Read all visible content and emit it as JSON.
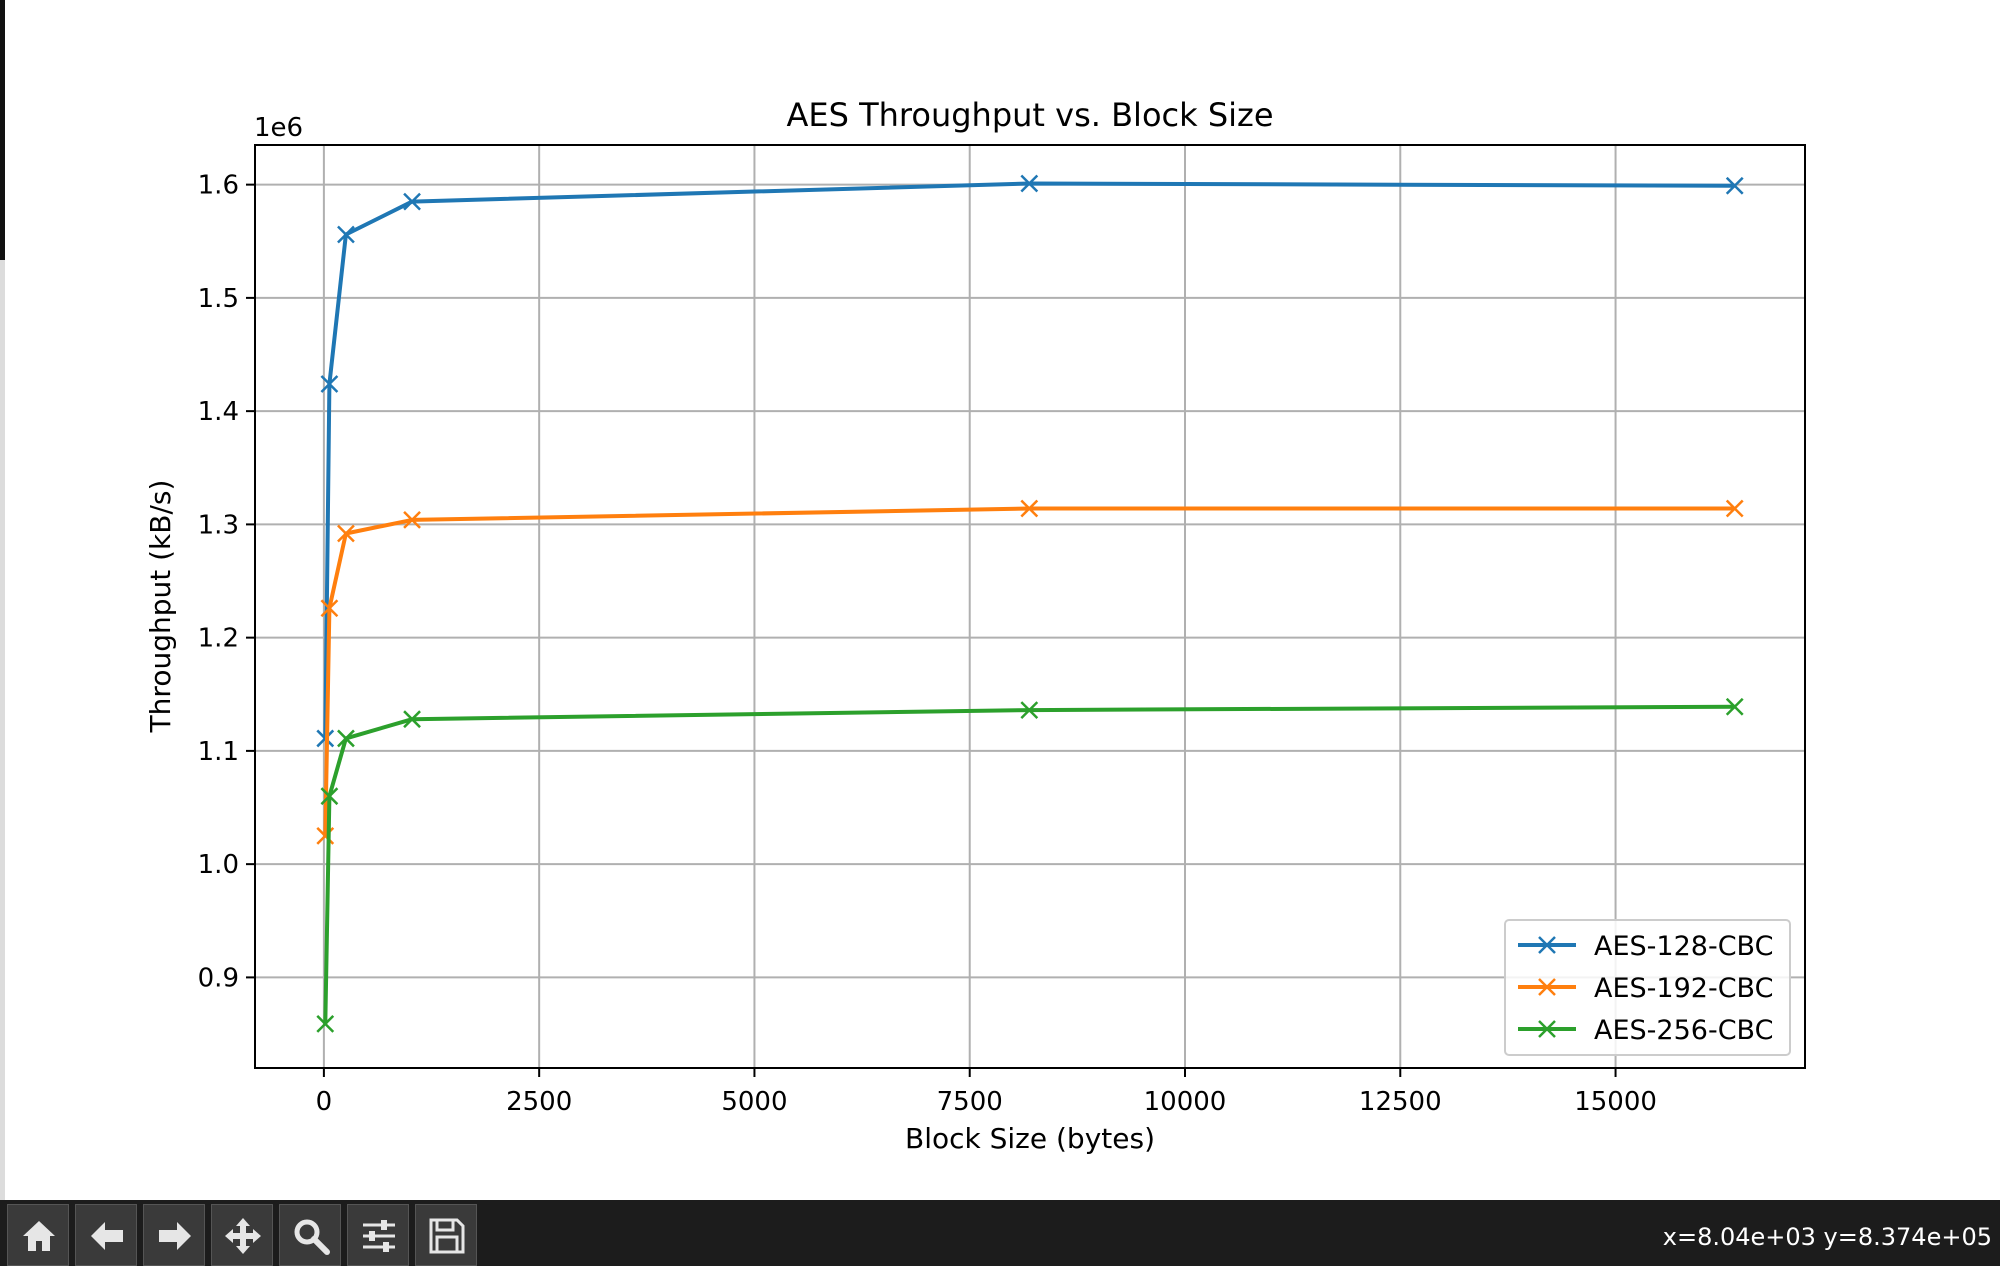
{
  "window": {
    "coord_readout": "x=8.04e+03 y=8.374e+05"
  },
  "toolbar": {
    "buttons": [
      {
        "name": "home-button",
        "icon": "home-icon"
      },
      {
        "name": "back-button",
        "icon": "arrow-left-icon"
      },
      {
        "name": "forward-button",
        "icon": "arrow-right-icon"
      },
      {
        "name": "pan-button",
        "icon": "move-icon"
      },
      {
        "name": "zoom-button",
        "icon": "zoom-icon"
      },
      {
        "name": "configure-subplots-button",
        "icon": "sliders-icon"
      },
      {
        "name": "save-button",
        "icon": "save-icon"
      }
    ]
  },
  "chart_data": {
    "type": "line",
    "title": "AES Throughput vs. Block Size",
    "xlabel": "Block Size (bytes)",
    "ylabel": "Throughput (kB/s)",
    "y_offset_label": "1e6",
    "xlim": [
      -800,
      17200
    ],
    "ylim": [
      820000,
      1635000
    ],
    "x_ticks": [
      0,
      2500,
      5000,
      7500,
      10000,
      12500,
      15000
    ],
    "x_tick_labels": [
      "0",
      "2500",
      "5000",
      "7500",
      "10000",
      "12500",
      "15000"
    ],
    "y_ticks": [
      900000,
      1000000,
      1100000,
      1200000,
      1300000,
      1400000,
      1500000,
      1600000
    ],
    "y_tick_labels": [
      "0.9",
      "1.0",
      "1.1",
      "1.2",
      "1.3",
      "1.4",
      "1.5",
      "1.6"
    ],
    "grid": true,
    "legend_position": "lower-right",
    "marker": "x",
    "x": [
      16,
      64,
      256,
      1024,
      8192,
      16384
    ],
    "series": [
      {
        "name": "AES-128-CBC",
        "color": "#1f77b4",
        "values": [
          1111000,
          1424000,
          1556000,
          1585000,
          1601000,
          1599000
        ]
      },
      {
        "name": "AES-192-CBC",
        "color": "#ff7f0e",
        "values": [
          1025000,
          1226000,
          1292000,
          1304000,
          1314000,
          1314000
        ]
      },
      {
        "name": "AES-256-CBC",
        "color": "#2ca02c",
        "values": [
          859000,
          1060000,
          1111000,
          1128000,
          1136000,
          1139000
        ]
      }
    ]
  }
}
